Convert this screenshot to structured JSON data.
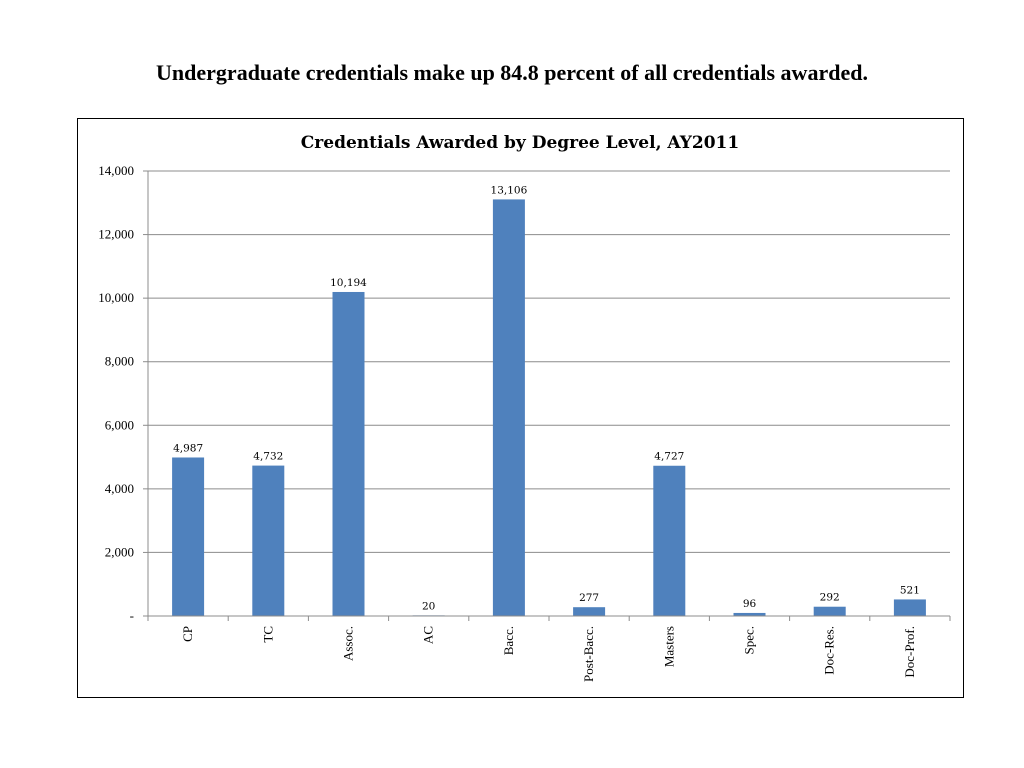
{
  "slide_title": "Undergraduate credentials make up 84.8 percent of all credentials awarded.",
  "chart_data": {
    "type": "bar",
    "title": "Credentials Awarded by Degree Level, AY2011",
    "xlabel": "",
    "ylabel": "",
    "categories": [
      "CP",
      "TC",
      "Assoc.",
      "AC",
      "Bacc.",
      "Post-Bacc.",
      "Masters",
      "Spec.",
      "Doc-Res.",
      "Doc-Prof."
    ],
    "values": [
      4987,
      4732,
      10194,
      20,
      13106,
      277,
      4727,
      96,
      292,
      521
    ],
    "data_labels": [
      "4,987",
      "4,732",
      "10,194",
      "20",
      "13,106",
      "277",
      "4,727",
      "96",
      "292",
      "521"
    ],
    "ylim": [
      0,
      14000
    ],
    "yticks": [
      0,
      2000,
      4000,
      6000,
      8000,
      10000,
      12000,
      14000
    ],
    "ytick_labels": [
      "-",
      "2,000",
      "4,000",
      "6,000",
      "8,000",
      "10,000",
      "12,000",
      "14,000"
    ],
    "grid": true,
    "legend": "none",
    "bar_color": "#4F81BD"
  }
}
